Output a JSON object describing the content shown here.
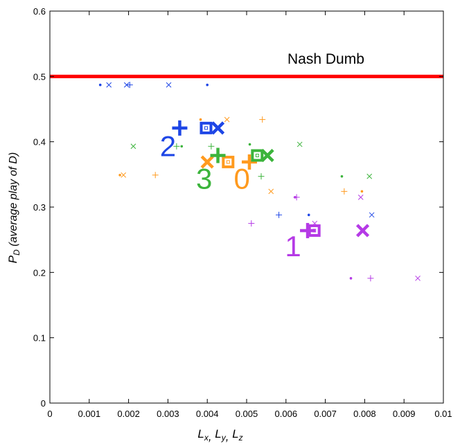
{
  "chart_data": {
    "type": "scatter",
    "title": "",
    "xlabel": "L",
    "xlabel_subscripts": [
      "x",
      "y",
      "z"
    ],
    "ylabel_main": "P",
    "ylabel_sub": "D",
    "ylabel_note": "(average play of D)",
    "xlim": [
      0,
      0.01
    ],
    "ylim": [
      0,
      0.6
    ],
    "grid": false,
    "legend": "none",
    "x_ticks": [
      "0",
      "0.001",
      "0.002",
      "0.003",
      "0.004",
      "0.005",
      "0.006",
      "0.007",
      "0.008",
      "0.009",
      "0.01"
    ],
    "y_ticks": [
      "0",
      "0.1",
      "0.2",
      "0.3",
      "0.4",
      "0.5",
      "0.6"
    ],
    "reference_line": {
      "label": "Nash Dumb",
      "y": 0.5,
      "color": "#ff0000"
    },
    "groups": [
      {
        "label": "0",
        "color": "#ff9a1e",
        "label_pos": {
          "x": 0.00488,
          "y": 0.328
        },
        "big": [
          {
            "marker": "plus",
            "x": 0.00507,
            "y": 0.369
          },
          {
            "marker": "cross",
            "x": 0.004,
            "y": 0.369
          },
          {
            "marker": "square",
            "x": 0.00453,
            "y": 0.369
          }
        ],
        "small": [
          {
            "marker": "dot",
            "x": 0.00178,
            "y": 0.349
          },
          {
            "marker": "cross",
            "x": 0.00187,
            "y": 0.349
          },
          {
            "marker": "plus",
            "x": 0.00268,
            "y": 0.349
          },
          {
            "marker": "dot",
            "x": 0.00383,
            "y": 0.434
          },
          {
            "marker": "cross",
            "x": 0.0045,
            "y": 0.434
          },
          {
            "marker": "plus",
            "x": 0.0054,
            "y": 0.434
          },
          {
            "marker": "cross",
            "x": 0.00562,
            "y": 0.324
          },
          {
            "marker": "plus",
            "x": 0.00748,
            "y": 0.324
          },
          {
            "marker": "dot",
            "x": 0.00793,
            "y": 0.324
          }
        ]
      },
      {
        "label": "1",
        "color": "#b53ae6",
        "label_pos": {
          "x": 0.00618,
          "y": 0.225
        },
        "big": [
          {
            "marker": "plus",
            "x": 0.00655,
            "y": 0.264
          },
          {
            "marker": "square",
            "x": 0.00672,
            "y": 0.264
          },
          {
            "marker": "cross",
            "x": 0.00795,
            "y": 0.264
          }
        ],
        "small": [
          {
            "marker": "plus",
            "x": 0.00512,
            "y": 0.275
          },
          {
            "marker": "cross",
            "x": 0.00673,
            "y": 0.275
          },
          {
            "marker": "dot",
            "x": 0.00623,
            "y": 0.315
          },
          {
            "marker": "plus",
            "x": 0.00627,
            "y": 0.315
          },
          {
            "marker": "cross",
            "x": 0.0079,
            "y": 0.315
          },
          {
            "marker": "dot",
            "x": 0.00765,
            "y": 0.191
          },
          {
            "marker": "plus",
            "x": 0.00815,
            "y": 0.191
          },
          {
            "marker": "cross",
            "x": 0.00935,
            "y": 0.191
          }
        ]
      },
      {
        "label": "2",
        "color": "#1e46e6",
        "label_pos": {
          "x": 0.003,
          "y": 0.378
        },
        "big": [
          {
            "marker": "plus",
            "x": 0.0033,
            "y": 0.421
          },
          {
            "marker": "square",
            "x": 0.00397,
            "y": 0.421
          },
          {
            "marker": "cross",
            "x": 0.00427,
            "y": 0.421
          }
        ],
        "small": [
          {
            "marker": "dot",
            "x": 0.00128,
            "y": 0.487
          },
          {
            "marker": "cross",
            "x": 0.0015,
            "y": 0.487
          },
          {
            "marker": "cross",
            "x": 0.00195,
            "y": 0.487
          },
          {
            "marker": "plus",
            "x": 0.00203,
            "y": 0.487
          },
          {
            "marker": "cross",
            "x": 0.00302,
            "y": 0.487
          },
          {
            "marker": "dot",
            "x": 0.004,
            "y": 0.487
          },
          {
            "marker": "plus",
            "x": 0.00582,
            "y": 0.288
          },
          {
            "marker": "dot",
            "x": 0.00658,
            "y": 0.288
          },
          {
            "marker": "cross",
            "x": 0.00818,
            "y": 0.288
          }
        ]
      },
      {
        "label": "3",
        "color": "#3cb43c",
        "label_pos": {
          "x": 0.00392,
          "y": 0.328
        },
        "big": [
          {
            "marker": "plus",
            "x": 0.00427,
            "y": 0.379
          },
          {
            "marker": "square",
            "x": 0.00527,
            "y": 0.379
          },
          {
            "marker": "cross",
            "x": 0.00553,
            "y": 0.379
          }
        ],
        "small": [
          {
            "marker": "cross",
            "x": 0.00212,
            "y": 0.393
          },
          {
            "marker": "plus",
            "x": 0.00322,
            "y": 0.393
          },
          {
            "marker": "dot",
            "x": 0.00335,
            "y": 0.393
          },
          {
            "marker": "plus",
            "x": 0.0041,
            "y": 0.393
          },
          {
            "marker": "dot",
            "x": 0.00508,
            "y": 0.396
          },
          {
            "marker": "cross",
            "x": 0.00635,
            "y": 0.396
          },
          {
            "marker": "plus",
            "x": 0.00537,
            "y": 0.347
          },
          {
            "marker": "dot",
            "x": 0.00742,
            "y": 0.347
          },
          {
            "marker": "cross",
            "x": 0.00812,
            "y": 0.347
          }
        ]
      }
    ]
  }
}
